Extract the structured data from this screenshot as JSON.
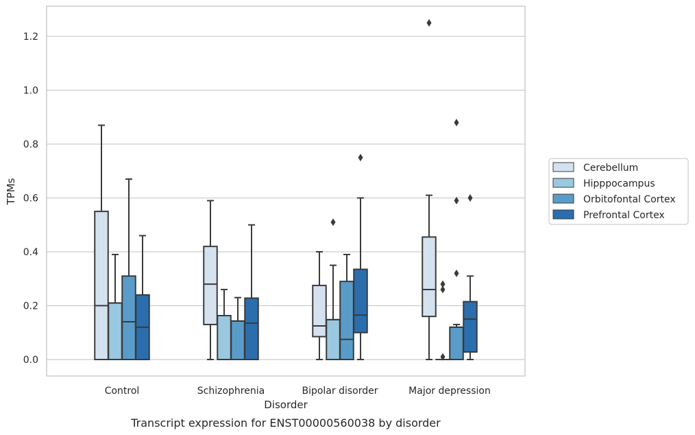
{
  "caption": "Transcript expression for ENST00000560038 by disorder",
  "chart_data": {
    "type": "box",
    "xlabel": "Disorder",
    "ylabel": "TPMs",
    "ylim": [
      -0.06,
      1.32
    ],
    "yticks": [
      "0.0",
      "0.2",
      "0.4",
      "0.6",
      "0.8",
      "1.0",
      "1.2"
    ],
    "grid": "horizontal",
    "legend_position": "right",
    "categories": [
      "Control",
      "Schizophrenia",
      "Bipolar disorder",
      "Major depression"
    ],
    "series": [
      {
        "name": "Cerebellum",
        "color": "#d4e2f0",
        "boxes": [
          {
            "whislo": 0.0,
            "q1": 0.0,
            "med": 0.2,
            "q3": 0.55,
            "whishi": 0.87,
            "fliers": []
          },
          {
            "whislo": 0.0,
            "q1": 0.13,
            "med": 0.28,
            "q3": 0.42,
            "whishi": 0.59,
            "fliers": []
          },
          {
            "whislo": 0.0,
            "q1": 0.085,
            "med": 0.125,
            "q3": 0.275,
            "whishi": 0.4,
            "fliers": []
          },
          {
            "whislo": 0.0,
            "q1": 0.16,
            "med": 0.26,
            "q3": 0.455,
            "whishi": 0.61,
            "fliers": [
              1.25
            ]
          }
        ]
      },
      {
        "name": "Hipppocampus",
        "color": "#9ac8e0",
        "boxes": [
          {
            "whislo": 0.0,
            "q1": 0.0,
            "med": 0.21,
            "q3": 0.21,
            "whishi": 0.39,
            "fliers": []
          },
          {
            "whislo": 0.0,
            "q1": 0.0,
            "med": 0.163,
            "q3": 0.163,
            "whishi": 0.26,
            "fliers": []
          },
          {
            "whislo": 0.0,
            "q1": 0.0,
            "med": 0.148,
            "q3": 0.148,
            "whishi": 0.35,
            "fliers": [
              0.51
            ]
          },
          {
            "whislo": 0.0,
            "q1": 0.0,
            "med": 0.0,
            "q3": 0.0,
            "whishi": 0.0,
            "fliers": [
              0.28,
              0.26,
              0.01
            ]
          }
        ]
      },
      {
        "name": "Orbitofontal Cortex",
        "color": "#5a9cc9",
        "boxes": [
          {
            "whislo": 0.0,
            "q1": 0.0,
            "med": 0.14,
            "q3": 0.31,
            "whishi": 0.67,
            "fliers": []
          },
          {
            "whislo": 0.0,
            "q1": 0.0,
            "med": 0.143,
            "q3": 0.143,
            "whishi": 0.23,
            "fliers": []
          },
          {
            "whislo": 0.0,
            "q1": 0.0,
            "med": 0.075,
            "q3": 0.29,
            "whishi": 0.39,
            "fliers": []
          },
          {
            "whislo": 0.0,
            "q1": 0.0,
            "med": 0.12,
            "q3": 0.12,
            "whishi": 0.13,
            "fliers": [
              0.88,
              0.59,
              0.32
            ]
          }
        ]
      },
      {
        "name": "Prefrontal Cortex",
        "color": "#2a6eae",
        "boxes": [
          {
            "whislo": 0.0,
            "q1": 0.0,
            "med": 0.12,
            "q3": 0.24,
            "whishi": 0.46,
            "fliers": []
          },
          {
            "whislo": 0.0,
            "q1": 0.0,
            "med": 0.135,
            "q3": 0.228,
            "whishi": 0.5,
            "fliers": []
          },
          {
            "whislo": 0.0,
            "q1": 0.1,
            "med": 0.165,
            "q3": 0.335,
            "whishi": 0.6,
            "fliers": [
              0.75
            ]
          },
          {
            "whislo": 0.0,
            "q1": 0.028,
            "med": 0.15,
            "q3": 0.215,
            "whishi": 0.31,
            "fliers": [
              0.6
            ]
          }
        ]
      }
    ]
  }
}
